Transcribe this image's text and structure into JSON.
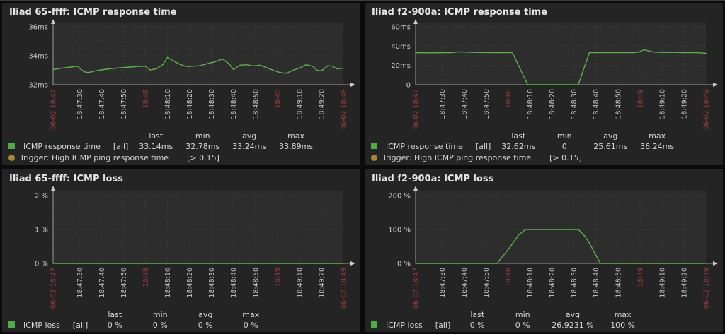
{
  "colors": {
    "page_bg": "#0b0b0b",
    "panel_bg": "#242424",
    "plot_bg": "#2d2d2d",
    "line": "#5bb347",
    "legend_swatch": "#4cae45",
    "trigger_dot": "#a8872f",
    "accent_tick": "#a23c3c",
    "tick_text": "#c8c8c8",
    "legend_text": "#d6d6d6",
    "grid": "#3e3e3e",
    "grid_minor": "#353535",
    "axis": "#9a9a9a",
    "arrow": "#cccccc"
  },
  "trange": [
    0,
    132
  ],
  "xticks": [
    {
      "t": 0,
      "label": "06-02 18:47",
      "accent": true
    },
    {
      "t": 12,
      "label": "18:47:30"
    },
    {
      "t": 22,
      "label": "18:47:40"
    },
    {
      "t": 32,
      "label": "18:47:50"
    },
    {
      "t": 42,
      "label": "18:48",
      "accent": true
    },
    {
      "t": 52,
      "label": "18:48:10"
    },
    {
      "t": 62,
      "label": "18:48:20"
    },
    {
      "t": 72,
      "label": "18:48:30"
    },
    {
      "t": 82,
      "label": "18:48:40"
    },
    {
      "t": 92,
      "label": "18:48:50"
    },
    {
      "t": 102,
      "label": "18:49",
      "accent": true
    },
    {
      "t": 112,
      "label": "18:49:10"
    },
    {
      "t": 122,
      "label": "18:49:20"
    },
    {
      "t": 132,
      "label": "06-02 18:49",
      "accent": true
    }
  ],
  "chart_data": [
    {
      "type": "line",
      "title": "Iliad 65-ffff: ICMP response time",
      "ylim": [
        32,
        36
      ],
      "yticks": [
        {
          "v": 32,
          "label": "32ms"
        },
        {
          "v": 34,
          "label": "34ms"
        },
        {
          "v": 36,
          "label": "36ms"
        }
      ],
      "yticks_minor": [
        33,
        35
      ],
      "series": [
        {
          "name": "ICMP response time",
          "points": [
            [
              0,
              33.05
            ],
            [
              4,
              33.15
            ],
            [
              8,
              33.22
            ],
            [
              11,
              33.28
            ],
            [
              14,
              32.9
            ],
            [
              16,
              32.84
            ],
            [
              19,
              32.95
            ],
            [
              23,
              33.05
            ],
            [
              27,
              33.12
            ],
            [
              31,
              33.17
            ],
            [
              35,
              33.22
            ],
            [
              39,
              33.27
            ],
            [
              42,
              33.28
            ],
            [
              44,
              33.02
            ],
            [
              47,
              33.1
            ],
            [
              50,
              33.4
            ],
            [
              52,
              33.89
            ],
            [
              55,
              33.62
            ],
            [
              58,
              33.38
            ],
            [
              61,
              33.26
            ],
            [
              64,
              33.28
            ],
            [
              67,
              33.32
            ],
            [
              70,
              33.45
            ],
            [
              74,
              33.6
            ],
            [
              77,
              33.78
            ],
            [
              80,
              33.45
            ],
            [
              82,
              33.05
            ],
            [
              85,
              33.35
            ],
            [
              88,
              33.38
            ],
            [
              91,
              33.3
            ],
            [
              94,
              33.35
            ],
            [
              97,
              33.18
            ],
            [
              100,
              33.0
            ],
            [
              103,
              32.85
            ],
            [
              106,
              32.78
            ],
            [
              109,
              33.0
            ],
            [
              112,
              33.15
            ],
            [
              115,
              33.38
            ],
            [
              118,
              33.28
            ],
            [
              120,
              33.0
            ],
            [
              122,
              32.96
            ],
            [
              125,
              33.32
            ],
            [
              127,
              33.28
            ],
            [
              129,
              33.1
            ],
            [
              132,
              33.14
            ]
          ]
        }
      ],
      "legend": {
        "headers": [
          "last",
          "min",
          "avg",
          "max"
        ],
        "item": {
          "name": "ICMP response time",
          "scope": "[all]",
          "values": [
            "33.14ms",
            "32.78ms",
            "33.24ms",
            "33.89ms"
          ]
        },
        "trigger": {
          "label": "Trigger: High ICMP ping response time",
          "expr": "[> 0.15]"
        }
      }
    },
    {
      "type": "line",
      "title": "Iliad f2-900a: ICMP response time",
      "ylim": [
        0,
        60
      ],
      "yticks": [
        {
          "v": 0,
          "label": "0"
        },
        {
          "v": 20,
          "label": "20ms"
        },
        {
          "v": 40,
          "label": "40ms"
        },
        {
          "v": 60,
          "label": "60ms"
        }
      ],
      "yticks_minor": [
        10,
        30,
        50
      ],
      "series": [
        {
          "name": "ICMP response time",
          "points": [
            [
              0,
              33.2
            ],
            [
              5,
              33.1
            ],
            [
              9,
              33.05
            ],
            [
              13,
              33.2
            ],
            [
              16,
              33.3
            ],
            [
              20,
              34.1
            ],
            [
              23,
              33.8
            ],
            [
              26,
              33.5
            ],
            [
              30,
              33.45
            ],
            [
              34,
              33.2
            ],
            [
              38,
              33.2
            ],
            [
              41,
              33.25
            ],
            [
              44,
              33.3
            ],
            [
              51,
              0
            ],
            [
              74,
              0
            ],
            [
              79,
              33.2
            ],
            [
              84,
              33.25
            ],
            [
              89,
              33.3
            ],
            [
              94,
              33.25
            ],
            [
              99,
              33.3
            ],
            [
              101,
              33.6
            ],
            [
              104,
              36.24
            ],
            [
              108,
              33.9
            ],
            [
              111,
              33.5
            ],
            [
              114,
              33.35
            ],
            [
              117,
              33.55
            ],
            [
              120,
              33.35
            ],
            [
              124,
              33.3
            ],
            [
              128,
              33.25
            ],
            [
              132,
              32.62
            ]
          ]
        }
      ],
      "legend": {
        "headers": [
          "last",
          "min",
          "avg",
          "max"
        ],
        "item": {
          "name": "ICMP response time",
          "scope": "[all]",
          "values": [
            "32.62ms",
            "0",
            "25.61ms",
            "36.24ms"
          ]
        },
        "trigger": {
          "label": "Trigger: High ICMP ping response time",
          "expr": "[> 0.15]"
        }
      }
    },
    {
      "type": "line",
      "title": "Iliad 65-ffff: ICMP loss",
      "ylim": [
        0,
        2
      ],
      "yticks": [
        {
          "v": 0,
          "label": "0 %"
        },
        {
          "v": 1,
          "label": "1 %"
        },
        {
          "v": 2,
          "label": "2 %"
        }
      ],
      "yticks_minor": [
        0.5,
        1.5
      ],
      "series": [
        {
          "name": "ICMP loss",
          "points": [
            [
              0,
              0
            ],
            [
              132,
              0
            ]
          ]
        }
      ],
      "legend": {
        "headers": [
          "last",
          "min",
          "avg",
          "max"
        ],
        "item": {
          "name": "ICMP loss",
          "scope": "[all]",
          "values": [
            "0 %",
            "0 %",
            "0 %",
            "0 %"
          ]
        }
      }
    },
    {
      "type": "line",
      "title": "Iliad f2-900a: ICMP loss",
      "ylim": [
        0,
        200
      ],
      "yticks": [
        {
          "v": 0,
          "label": "0 %"
        },
        {
          "v": 100,
          "label": "100 %"
        },
        {
          "v": 200,
          "label": "200 %"
        }
      ],
      "yticks_minor": [
        50,
        150
      ],
      "series": [
        {
          "name": "ICMP loss",
          "points": [
            [
              0,
              0
            ],
            [
              37,
              0
            ],
            [
              42,
              40
            ],
            [
              47,
              85
            ],
            [
              50,
              100
            ],
            [
              74,
              100
            ],
            [
              77,
              80
            ],
            [
              79,
              60
            ],
            [
              84,
              0
            ],
            [
              132,
              0
            ]
          ]
        }
      ],
      "legend": {
        "headers": [
          "last",
          "min",
          "avg",
          "max"
        ],
        "item": {
          "name": "ICMP loss",
          "scope": "[all]",
          "values": [
            "0 %",
            "0 %",
            "26.9231 %",
            "100 %"
          ]
        }
      }
    }
  ]
}
